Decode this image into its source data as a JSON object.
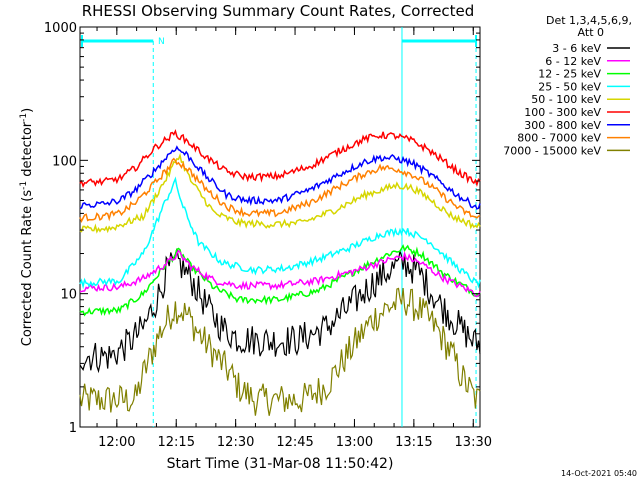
{
  "chart_data": {
    "type": "line",
    "title": "RHESSI Observing Summary Count Rates, Corrected",
    "xlabel": "Start Time (31-Mar-08 11:50:42)",
    "ylabel_parts": {
      "prefix": "Corrected Count Rate (s",
      "sup1": "-1",
      "middle": " detector",
      "sup2": "-1",
      "suffix": ")"
    },
    "yscale": "log",
    "ylim": [
      1,
      1000
    ],
    "xlim_minutes_after_start": [
      0,
      101
    ],
    "y_tick_labels": [
      "1",
      "10",
      "100",
      "1000"
    ],
    "x_tick_labels": [
      "12:00",
      "12:15",
      "12:30",
      "12:45",
      "13:00",
      "13:15",
      "13:30"
    ],
    "x_ticks_minutes_after_start": [
      9.3,
      24.3,
      39.3,
      54.3,
      69.3,
      84.3,
      99.3
    ],
    "legend_header": [
      "Det 1,3,4,5,6,9,",
      "Att 0"
    ],
    "legend_position": "right",
    "series": [
      {
        "name": "3 - 6 keV",
        "color": "#000000",
        "x": [
          0,
          8,
          12,
          16,
          20,
          22,
          25,
          28,
          32,
          36,
          40,
          48,
          55,
          62,
          68,
          74,
          78,
          82,
          86,
          90,
          95,
          100
        ],
        "y": [
          3.4,
          3.4,
          4.2,
          5.5,
          10.0,
          15.0,
          17.0,
          13.0,
          8.0,
          5.5,
          4.6,
          4.4,
          4.5,
          5.5,
          8.0,
          12.0,
          15.0,
          17.0,
          14.0,
          9.0,
          6.0,
          4.2
        ]
      },
      {
        "name": "6 - 12 keV",
        "color": "#ff00ff",
        "x": [
          0,
          10,
          16,
          22,
          25,
          28,
          34,
          40,
          50,
          60,
          70,
          78,
          82,
          86,
          92,
          100
        ],
        "y": [
          11.0,
          11.2,
          13.0,
          17.0,
          20.0,
          16.0,
          12.5,
          11.5,
          11.5,
          12.5,
          15.0,
          18.0,
          19.0,
          17.0,
          13.0,
          10.0
        ]
      },
      {
        "name": "12 - 25 keV",
        "color": "#00ff00",
        "x": [
          0,
          10,
          16,
          22,
          25,
          28,
          34,
          40,
          50,
          60,
          70,
          78,
          82,
          86,
          92,
          100
        ],
        "y": [
          7.3,
          7.5,
          10.0,
          17.0,
          21.0,
          16.0,
          11.0,
          9.0,
          9.0,
          10.5,
          15.0,
          20.0,
          22.0,
          20.0,
          14.0,
          10.0
        ]
      },
      {
        "name": "25 - 50 keV",
        "color": "#00ffff",
        "x": [
          0,
          10,
          16,
          21,
          24,
          26,
          30,
          36,
          44,
          52,
          60,
          68,
          76,
          82,
          88,
          94,
          100
        ],
        "y": [
          12.0,
          12.5,
          20.0,
          45.0,
          70.0,
          45.0,
          24.0,
          17.0,
          15.0,
          15.5,
          18.0,
          22.0,
          28.0,
          30.0,
          25.0,
          17.0,
          12.0
        ]
      },
      {
        "name": "50 - 100 keV",
        "color": "#d6d600",
        "x": [
          0,
          8,
          16,
          22,
          25,
          28,
          34,
          40,
          48,
          56,
          64,
          72,
          80,
          84,
          88,
          94,
          100
        ],
        "y": [
          30.0,
          31.0,
          38.0,
          75.0,
          110.0,
          70.0,
          40.0,
          34.0,
          33.0,
          34.0,
          42.0,
          55.0,
          65.0,
          62.0,
          52.0,
          38.0,
          32.0
        ]
      },
      {
        "name": "100 - 300 keV",
        "color": "#ff0000",
        "x": [
          0,
          6,
          10,
          14,
          19,
          24,
          27,
          32,
          37,
          42,
          50,
          58,
          66,
          72,
          76,
          80,
          84,
          88,
          92,
          96,
          100
        ],
        "y": [
          68.0,
          69.0,
          73.0,
          88.0,
          125.0,
          160.0,
          140.0,
          105.0,
          82.0,
          75.0,
          76.0,
          90.0,
          120.0,
          145.0,
          155.0,
          152.0,
          140.0,
          120.0,
          98.0,
          80.0,
          68.0
        ]
      },
      {
        "name": "300 - 800 keV",
        "color": "#0000ff",
        "x": [
          0,
          6,
          10,
          14,
          19,
          24,
          27,
          32,
          37,
          42,
          50,
          58,
          66,
          72,
          76,
          80,
          84,
          88,
          92,
          96,
          100
        ],
        "y": [
          46.0,
          47.0,
          50.0,
          60.0,
          85.0,
          125.0,
          110.0,
          75.0,
          55.0,
          50.0,
          50.0,
          60.0,
          80.0,
          98.0,
          105.0,
          103.0,
          95.0,
          80.0,
          65.0,
          53.0,
          45.0
        ]
      },
      {
        "name": "800 - 7000 keV",
        "color": "#ff8000",
        "x": [
          0,
          6,
          10,
          14,
          19,
          24,
          27,
          32,
          37,
          42,
          50,
          58,
          66,
          72,
          76,
          80,
          84,
          88,
          92,
          96,
          100
        ],
        "y": [
          37.0,
          38.0,
          40.0,
          48.0,
          68.0,
          100.0,
          88.0,
          60.0,
          45.0,
          40.0,
          40.0,
          48.0,
          65.0,
          80.0,
          88.0,
          86.0,
          78.0,
          66.0,
          53.0,
          43.0,
          37.0
        ]
      },
      {
        "name": "7000 - 15000 keV",
        "color": "#808000",
        "x": [
          0,
          14,
          16,
          18,
          20,
          24,
          27,
          30,
          34,
          38,
          40,
          44,
          50,
          56,
          62,
          66,
          70,
          74,
          78,
          82,
          86,
          90,
          94,
          96,
          98,
          100
        ],
        "y": [
          1.6,
          1.6,
          2.5,
          3.5,
          5.0,
          8.0,
          7.0,
          5.0,
          3.5,
          2.5,
          2.0,
          1.6,
          1.6,
          1.6,
          2.0,
          3.0,
          4.5,
          6.5,
          8.0,
          9.0,
          7.5,
          5.5,
          3.5,
          2.5,
          2.0,
          1.6
        ]
      }
    ],
    "cyan_markers_minutes_after_start": [
      18.5,
      81.3,
      100.0
    ],
    "attenuator_label": "N"
  },
  "footer": {
    "timestamp": "14-Oct-2021 05:40"
  }
}
